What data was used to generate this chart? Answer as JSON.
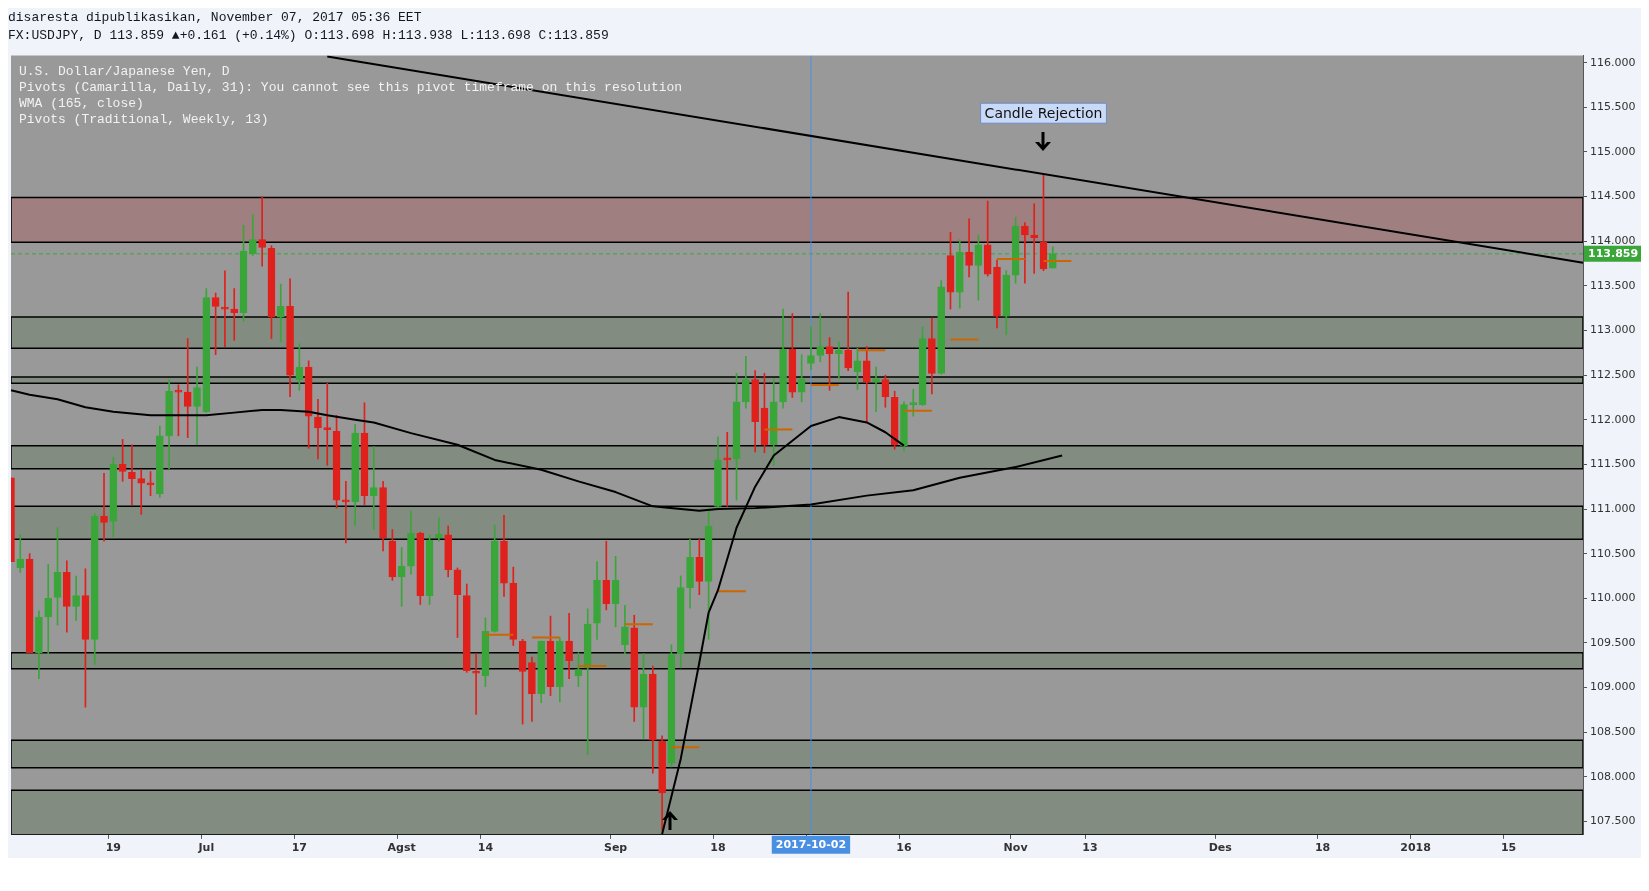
{
  "chart_data": {
    "type": "candlestick",
    "subtitle": "disaresta dipublikasikan, November 07, 2017 05:36 EET",
    "title": "FX:USDJPY, D 113.859 ▲+0.161 (+0.14%) O:113.698 H:113.938 L:113.698 C:113.859",
    "annotations": [
      "U.S. Dollar/Japanese Yen, D",
      "Pivots (Camarilla, Daily, 31): You cannot see this pivot timeframe on this resolution",
      "WMA (165, close)",
      "Pivots (Traditional, Weekly, 13)",
      "Candle Rejection"
    ],
    "categories": [
      null,
      null,
      null,
      null,
      null,
      null,
      null,
      null,
      null,
      null,
      null,
      "19",
      null,
      null,
      null,
      null,
      null,
      null,
      null,
      null,
      null,
      "Jul",
      null,
      null,
      null,
      null,
      null,
      null,
      null,
      null,
      null,
      "17",
      null,
      null,
      null,
      null,
      null,
      null,
      null,
      null,
      null,
      null,
      "Agst",
      null,
      null,
      null,
      null,
      null,
      null,
      null,
      null,
      "14",
      null,
      null,
      null,
      null,
      null,
      null,
      null,
      null,
      null,
      null,
      null,
      null,
      null,
      "Sep",
      null,
      null,
      null,
      null,
      null,
      null,
      null,
      null,
      null,
      null,
      "18",
      null,
      null,
      null,
      null,
      null,
      null,
      null,
      null,
      null,
      "2017-10-02",
      null,
      null,
      null,
      null,
      null,
      null,
      null,
      null,
      null,
      "16",
      null,
      null,
      null,
      null,
      null,
      null,
      null,
      null,
      null,
      null,
      null,
      "Nov",
      null,
      null,
      null,
      null,
      null,
      null,
      null,
      "13",
      null,
      null,
      null,
      null,
      null,
      null,
      null,
      null,
      null,
      null,
      null,
      null,
      null,
      "Des",
      null,
      null,
      null,
      null,
      null,
      null,
      null,
      null,
      null,
      null,
      "18",
      null,
      null,
      null,
      null,
      null,
      null,
      null,
      null,
      null,
      "2018",
      null,
      null,
      null,
      null,
      null,
      null,
      null,
      null,
      null,
      "15",
      null,
      null,
      null,
      null,
      null,
      null,
      null,
      null
    ],
    "ohlc": [
      [
        111.35,
        111.35,
        110.41,
        110.41
      ],
      [
        110.34,
        110.71,
        110.29,
        110.44
      ],
      [
        110.44,
        110.5,
        109.39,
        109.39
      ],
      [
        109.39,
        109.86,
        109.1,
        109.79
      ],
      [
        109.79,
        110.38,
        109.38,
        110.0
      ],
      [
        110.01,
        110.79,
        109.7,
        110.29
      ],
      [
        110.29,
        110.42,
        109.62,
        109.91
      ],
      [
        109.91,
        110.25,
        109.75,
        110.03
      ],
      [
        110.03,
        110.33,
        108.78,
        109.54
      ],
      [
        109.54,
        110.95,
        109.26,
        110.92
      ],
      [
        110.92,
        111.4,
        110.64,
        110.85
      ],
      [
        110.86,
        111.58,
        110.69,
        111.5
      ],
      [
        111.5,
        111.78,
        111.31,
        111.42
      ],
      [
        111.41,
        111.72,
        111.05,
        111.34
      ],
      [
        111.34,
        111.44,
        110.94,
        111.29
      ],
      [
        111.29,
        111.42,
        111.15,
        111.27
      ],
      [
        111.17,
        111.93,
        111.13,
        111.82
      ],
      [
        111.82,
        112.45,
        111.45,
        112.32
      ],
      [
        112.32,
        112.39,
        111.82,
        112.31
      ],
      [
        112.31,
        112.91,
        111.8,
        112.15
      ],
      [
        112.15,
        112.59,
        111.72,
        112.36
      ],
      [
        112.09,
        113.47,
        112.08,
        113.37
      ],
      [
        113.37,
        113.42,
        112.73,
        113.27
      ],
      [
        113.25,
        113.67,
        112.82,
        113.24
      ],
      [
        113.24,
        113.47,
        112.89,
        113.2
      ],
      [
        113.2,
        114.18,
        113.1,
        113.89
      ],
      [
        113.86,
        114.3,
        113.84,
        114.02
      ],
      [
        114.02,
        114.5,
        113.72,
        113.93
      ],
      [
        113.92,
        113.95,
        112.91,
        113.15
      ],
      [
        113.15,
        113.52,
        112.87,
        113.27
      ],
      [
        113.27,
        113.58,
        112.26,
        112.5
      ],
      [
        112.45,
        112.85,
        112.33,
        112.59
      ],
      [
        112.59,
        112.66,
        111.68,
        112.04
      ],
      [
        112.03,
        112.23,
        111.56,
        111.91
      ],
      [
        111.91,
        112.41,
        111.49,
        111.89
      ],
      [
        111.87,
        112.05,
        111.01,
        111.1
      ],
      [
        111.09,
        111.31,
        110.62,
        111.08
      ],
      [
        111.08,
        111.95,
        110.82,
        111.85
      ],
      [
        111.85,
        112.19,
        111.05,
        111.15
      ],
      [
        111.15,
        111.7,
        110.77,
        111.24
      ],
      [
        111.24,
        111.31,
        110.53,
        110.68
      ],
      [
        110.64,
        110.77,
        110.2,
        110.24
      ],
      [
        110.24,
        110.57,
        109.91,
        110.36
      ],
      [
        110.36,
        110.98,
        110.27,
        110.73
      ],
      [
        110.73,
        110.74,
        109.93,
        110.03
      ],
      [
        110.03,
        110.71,
        109.93,
        110.65
      ],
      [
        110.68,
        110.9,
        110.64,
        110.72
      ],
      [
        110.71,
        110.81,
        110.24,
        110.32
      ],
      [
        110.32,
        110.34,
        109.56,
        110.04
      ],
      [
        110.03,
        110.16,
        109.17,
        109.19
      ],
      [
        109.18,
        109.38,
        108.7,
        109.16
      ],
      [
        109.13,
        109.78,
        109.01,
        109.63
      ],
      [
        109.63,
        110.82,
        109.62,
        110.64
      ],
      [
        110.64,
        110.93,
        110.02,
        110.17
      ],
      [
        110.17,
        110.35,
        109.47,
        109.54
      ],
      [
        109.52,
        109.54,
        108.59,
        109.18
      ],
      [
        109.28,
        109.34,
        108.62,
        108.93
      ],
      [
        108.93,
        109.52,
        108.83,
        109.52
      ],
      [
        109.52,
        109.8,
        108.91,
        109.01
      ],
      [
        109.01,
        109.56,
        108.84,
        109.52
      ],
      [
        109.52,
        109.83,
        109.1,
        109.3
      ],
      [
        109.13,
        109.39,
        109.01,
        109.2
      ],
      [
        109.22,
        109.88,
        108.25,
        109.71
      ],
      [
        109.72,
        110.41,
        109.54,
        110.2
      ],
      [
        110.2,
        110.64,
        109.87,
        109.94
      ],
      [
        109.94,
        110.47,
        109.68,
        110.2
      ],
      [
        109.48,
        109.92,
        109.38,
        109.68
      ],
      [
        109.67,
        109.81,
        108.62,
        108.78
      ],
      [
        108.78,
        109.38,
        108.43,
        109.15
      ],
      [
        109.15,
        109.24,
        108.04,
        108.41
      ],
      [
        108.4,
        108.46,
        107.4,
        107.82
      ],
      [
        108.15,
        109.48,
        108.11,
        109.37
      ],
      [
        109.38,
        110.25,
        109.22,
        110.12
      ],
      [
        110.12,
        110.66,
        109.89,
        110.46
      ],
      [
        110.46,
        110.66,
        110.04,
        110.19
      ],
      [
        110.19,
        111.01,
        109.54,
        110.81
      ],
      [
        111.03,
        111.81,
        110.99,
        111.55
      ],
      [
        111.56,
        111.86,
        111.03,
        111.55
      ],
      [
        111.56,
        112.52,
        111.1,
        112.2
      ],
      [
        112.2,
        112.71,
        112.13,
        112.45
      ],
      [
        112.45,
        112.55,
        111.64,
        111.98
      ],
      [
        112.13,
        112.52,
        111.63,
        111.72
      ],
      [
        111.72,
        112.46,
        111.49,
        112.2
      ],
      [
        112.2,
        113.24,
        112.13,
        112.79
      ],
      [
        112.79,
        113.19,
        112.25,
        112.31
      ],
      [
        112.31,
        112.73,
        112.2,
        112.46
      ],
      [
        112.63,
        113.04,
        112.56,
        112.72
      ],
      [
        112.72,
        113.19,
        112.65,
        112.82
      ],
      [
        112.82,
        112.92,
        112.33,
        112.74
      ],
      [
        112.74,
        112.87,
        112.46,
        112.78
      ],
      [
        112.78,
        113.43,
        112.55,
        112.58
      ],
      [
        112.54,
        112.8,
        112.34,
        112.66
      ],
      [
        112.66,
        112.82,
        111.97,
        112.42
      ],
      [
        112.42,
        112.59,
        112.09,
        112.46
      ],
      [
        112.45,
        112.5,
        112.14,
        112.26
      ],
      [
        112.25,
        112.32,
        111.67,
        111.72
      ],
      [
        111.71,
        112.2,
        111.65,
        112.17
      ],
      [
        112.17,
        112.34,
        112.04,
        112.18
      ],
      [
        112.17,
        113.04,
        112.16,
        112.91
      ],
      [
        112.91,
        113.14,
        112.29,
        112.52
      ],
      [
        112.52,
        113.56,
        112.51,
        113.49
      ],
      [
        113.84,
        114.1,
        113.24,
        113.43
      ],
      [
        113.43,
        114.02,
        113.25,
        113.88
      ],
      [
        113.88,
        114.25,
        113.6,
        113.73
      ],
      [
        113.73,
        114.07,
        113.34,
        113.96
      ],
      [
        113.96,
        114.45,
        113.61,
        113.63
      ],
      [
        113.71,
        113.79,
        113.03,
        113.16
      ],
      [
        113.16,
        113.67,
        112.95,
        113.62
      ],
      [
        113.62,
        114.27,
        113.53,
        114.17
      ],
      [
        114.17,
        114.21,
        113.53,
        114.07
      ],
      [
        114.07,
        114.42,
        113.64,
        114.04
      ],
      [
        113.99,
        114.74,
        113.67,
        113.69
      ],
      [
        113.698,
        113.938,
        113.698,
        113.859
      ],
      null,
      null,
      null,
      null,
      null,
      null,
      null,
      null,
      null,
      null,
      null,
      null,
      null,
      null,
      null,
      null,
      null,
      null,
      null,
      null,
      null,
      null,
      null,
      null,
      null,
      null,
      null,
      null,
      null,
      null,
      null,
      null,
      null,
      null,
      null,
      null,
      null,
      null,
      null,
      null,
      null,
      null,
      null,
      null,
      null,
      null,
      null,
      null,
      null,
      null,
      null,
      null,
      null,
      null,
      null,
      null,
      null
    ],
    "colors": [
      "#e0201b",
      "#3aa63a",
      "#e0201b",
      "#3aa63a",
      "#3aa63a",
      "#3aa63a",
      "#e0201b",
      "#3aa63a",
      "#e0201b",
      "#3aa63a",
      "#e0201b",
      "#3aa63a",
      "#e0201b",
      "#e0201b",
      "#e0201b",
      "#e0201b",
      "#3aa63a",
      "#3aa63a",
      "#e0201b",
      "#e0201b",
      "#3aa63a",
      "#3aa63a",
      "#e0201b",
      "#e0201b",
      "#e0201b",
      "#3aa63a",
      "#3aa63a",
      "#e0201b",
      "#e0201b",
      "#3aa63a",
      "#e0201b",
      "#3aa63a",
      "#e0201b",
      "#e0201b",
      "#e0201b",
      "#e0201b",
      "#e0201b",
      "#3aa63a",
      "#e0201b",
      "#3aa63a",
      "#e0201b",
      "#e0201b",
      "#3aa63a",
      "#3aa63a",
      "#e0201b",
      "#3aa63a",
      "#3aa63a",
      "#e0201b",
      "#e0201b",
      "#e0201b",
      "#e0201b",
      "#3aa63a",
      "#3aa63a",
      "#e0201b",
      "#e0201b",
      "#e0201b",
      "#e0201b",
      "#3aa63a",
      "#e0201b",
      "#3aa63a",
      "#e0201b",
      "#3aa63a",
      "#3aa63a",
      "#3aa63a",
      "#e0201b",
      "#3aa63a",
      "#3aa63a",
      "#e0201b",
      "#3aa63a",
      "#e0201b",
      "#e0201b",
      "#3aa63a",
      "#3aa63a",
      "#3aa63a",
      "#e0201b",
      "#3aa63a",
      "#3aa63a",
      "#e0201b",
      "#3aa63a",
      "#3aa63a",
      "#e0201b",
      "#e0201b",
      "#3aa63a",
      "#3aa63a",
      "#e0201b",
      "#3aa63a",
      "#3aa63a",
      "#3aa63a",
      "#e0201b",
      "#3aa63a",
      "#e0201b",
      "#3aa63a",
      "#e0201b",
      "#3aa63a",
      "#e0201b",
      "#e0201b",
      "#3aa63a",
      "#3aa63a",
      "#3aa63a",
      "#e0201b",
      "#3aa63a",
      "#e0201b",
      "#3aa63a",
      "#e0201b",
      "#3aa63a",
      "#e0201b",
      "#e0201b",
      "#3aa63a",
      "#3aa63a",
      "#e0201b",
      "#e0201b",
      "#e0201b",
      "#3aa63a",
      null,
      null,
      null,
      null,
      null,
      null,
      null,
      null,
      null,
      null,
      null,
      null,
      null,
      null,
      null,
      null,
      null,
      null,
      null,
      null,
      null,
      null,
      null,
      null,
      null,
      null,
      null,
      null,
      null,
      null,
      null,
      null,
      null,
      null,
      null,
      null,
      null,
      null,
      null,
      null,
      null,
      null,
      null,
      null,
      null,
      null,
      null,
      null,
      null,
      null,
      null,
      null,
      null,
      null,
      null,
      null,
      null
    ],
    "series": [
      {
        "type": "line",
        "color": "#000000",
        "values": [
          112.33,
          null,
          112.28,
          null,
          null,
          112.23,
          null,
          null,
          112.14,
          null,
          null,
          112.09,
          null,
          null,
          null,
          112.05,
          null,
          null,
          null,
          112.05,
          null,
          112.05,
          null,
          null,
          112.08,
          null,
          null,
          112.11,
          null,
          112.11,
          null,
          null,
          112.09,
          null,
          112.05,
          null,
          null,
          112.0,
          null,
          111.97,
          null,
          null,
          null,
          111.85,
          null,
          null,
          null,
          null,
          111.72,
          null,
          null,
          null,
          111.55,
          null,
          null,
          null,
          null,
          111.44,
          null,
          null,
          null,
          111.31,
          null,
          null,
          null,
          111.19,
          null,
          null,
          null,
          111.03,
          null,
          null,
          null,
          null,
          110.98,
          null,
          111.0,
          null,
          null,
          null,
          111.01,
          null,
          null,
          null,
          null,
          null,
          111.05,
          null,
          null,
          null,
          null,
          null,
          111.15,
          null,
          null,
          null,
          null,
          111.21,
          null,
          null,
          null,
          null,
          111.35,
          null,
          null,
          null,
          null,
          null,
          111.47,
          null,
          null,
          null,
          null,
          111.6,
          null,
          null,
          null,
          null,
          null,
          null,
          null,
          null,
          null,
          null,
          null,
          null,
          null,
          null,
          null,
          null,
          null,
          null,
          null,
          null,
          null,
          null,
          null,
          null,
          null,
          null,
          null,
          null,
          null,
          null,
          null,
          null,
          null,
          null,
          null,
          null,
          null,
          null,
          null,
          null,
          null,
          null,
          null,
          null,
          null,
          null,
          null,
          null,
          null,
          null,
          null,
          null,
          null,
          null,
          null,
          null
        ]
      },
      {
        "type": "line",
        "color": "#000000",
        "values": [
          null,
          null,
          null,
          null,
          null,
          null,
          null,
          null,
          null,
          null,
          null,
          null,
          null,
          null,
          null,
          null,
          null,
          null,
          null,
          null,
          null,
          null,
          null,
          null,
          null,
          null,
          null,
          null,
          null,
          null,
          null,
          null,
          null,
          null,
          116.07,
          null,
          null,
          null,
          null,
          null,
          null,
          null,
          null,
          null,
          null,
          null,
          null,
          null,
          null,
          null,
          null,
          null,
          null,
          null,
          null,
          null,
          null,
          null,
          null,
          null,
          null,
          null,
          null,
          null,
          null,
          null,
          null,
          null,
          null,
          null,
          null,
          null,
          null,
          null,
          null,
          null,
          null,
          null,
          null,
          null,
          null,
          null,
          null,
          null,
          null,
          null,
          null,
          null,
          null,
          null,
          null,
          null,
          null,
          null,
          null,
          null,
          null,
          null,
          null,
          null,
          null,
          null,
          null,
          null,
          null,
          null,
          null,
          null,
          null,
          null,
          null,
          null,
          null,
          null,
          null,
          null,
          null,
          null,
          null,
          null,
          null,
          null,
          null,
          null,
          null,
          null,
          null,
          null,
          null,
          null,
          null,
          null,
          null,
          null,
          null,
          null,
          null,
          null,
          null,
          null,
          null,
          null,
          null,
          null,
          null,
          null,
          null,
          null,
          null,
          null,
          null,
          null,
          null,
          null,
          null,
          null,
          null,
          null,
          null,
          null,
          null,
          null,
          null,
          null,
          null,
          null,
          null,
          null,
          null,
          113.76
        ]
      },
      {
        "type": "line",
        "color": "#000000",
        "values": [
          null,
          null,
          null,
          null,
          null,
          null,
          null,
          null,
          null,
          null,
          null,
          null,
          null,
          null,
          null,
          null,
          null,
          null,
          null,
          null,
          null,
          null,
          null,
          null,
          null,
          null,
          null,
          null,
          null,
          null,
          null,
          null,
          null,
          null,
          null,
          null,
          null,
          null,
          null,
          null,
          null,
          null,
          null,
          null,
          null,
          null,
          null,
          null,
          null,
          null,
          null,
          null,
          null,
          null,
          null,
          null,
          null,
          null,
          null,
          null,
          null,
          null,
          null,
          null,
          null,
          null,
          null,
          null,
          null,
          null,
          107.36,
          null,
          108.2,
          null,
          109.28,
          109.84,
          110.09,
          null,
          110.79,
          null,
          111.25,
          null,
          111.6,
          null,
          null,
          null,
          111.93,
          null,
          null,
          112.03,
          null,
          null,
          111.97,
          null,
          111.86,
          null,
          111.71,
          null,
          null,
          null,
          null,
          null,
          null,
          null,
          null,
          null,
          null,
          null,
          null,
          null,
          null,
          null,
          null,
          null,
          null,
          null,
          null,
          null,
          null,
          null,
          null,
          null,
          null,
          null,
          null,
          null,
          null,
          null,
          null,
          null,
          null,
          null,
          null,
          null,
          null,
          null,
          null,
          null,
          null,
          null,
          null,
          null,
          null,
          null,
          null,
          null,
          null,
          null,
          null,
          null,
          null,
          null,
          null,
          null,
          null,
          null,
          null,
          null,
          null,
          null,
          null,
          null,
          null,
          null,
          null,
          null,
          null,
          null,
          null,
          null
        ]
      },
      {
        "type": "line",
        "color": "#cc6600",
        "values": [
          null,
          null,
          null,
          null,
          null,
          null,
          null,
          null,
          null,
          null,
          null,
          null,
          null,
          null,
          null,
          null,
          null,
          null,
          null,
          null,
          null,
          null,
          null,
          null,
          null,
          null,
          null,
          null,
          null,
          null,
          null,
          null,
          null,
          null,
          null,
          null,
          null,
          null,
          null,
          null,
          null,
          null,
          null,
          null,
          null,
          null,
          null,
          null,
          null,
          null,
          null,
          109.59,
          109.59,
          109.59,
          109.59,
          null,
          109.56,
          109.56,
          109.56,
          109.56,
          null,
          109.24,
          109.24,
          109.24,
          109.24,
          null,
          109.71,
          109.71,
          109.71,
          109.71,
          null,
          108.33,
          108.33,
          108.33,
          108.33,
          null,
          110.08,
          110.08,
          110.08,
          110.08,
          null,
          111.89,
          111.89,
          111.89,
          111.89,
          null,
          112.39,
          112.39,
          112.39,
          112.39,
          null,
          112.78,
          112.78,
          112.78,
          112.78,
          null,
          112.1,
          112.1,
          112.1,
          112.1,
          null,
          112.9,
          112.9,
          112.9,
          112.9,
          null,
          113.8,
          113.8,
          113.8,
          113.8,
          null,
          113.78,
          113.78,
          113.78,
          113.78,
          null,
          null,
          null,
          null,
          null,
          null,
          null,
          null,
          null,
          null,
          null,
          null,
          null,
          null,
          null,
          null,
          null,
          null,
          null,
          null,
          null,
          null,
          null,
          null,
          null,
          null,
          null,
          null,
          null,
          null,
          null,
          null,
          null,
          null,
          null,
          null,
          null,
          null,
          null,
          null,
          null,
          null,
          null,
          null,
          null,
          null,
          null,
          null,
          null,
          null,
          null,
          null,
          null,
          null,
          null
        ]
      }
    ],
    "bands": [
      {
        "axis": "y",
        "from": 113.99,
        "to": 114.49,
        "color": "#a07a7a"
      },
      {
        "axis": "y",
        "from": 112.8,
        "to": 113.15,
        "color": "#7f8a7c"
      },
      {
        "axis": "y",
        "from": 112.41,
        "to": 112.48,
        "color": "#7f8a7c"
      },
      {
        "axis": "y",
        "from": 111.45,
        "to": 111.71,
        "color": "#7f8a7c"
      },
      {
        "axis": "y",
        "from": 110.66,
        "to": 111.03,
        "color": "#7f8a7c"
      },
      {
        "axis": "y",
        "from": 109.21,
        "to": 109.39,
        "color": "#7f8a7c"
      },
      {
        "axis": "y",
        "from": 108.1,
        "to": 108.41,
        "color": "#7f8a7c"
      },
      {
        "axis": "y",
        "from": 107.35,
        "to": 107.85,
        "color": "#7f8a7c"
      }
    ],
    "ref_lines": [
      {
        "axis": "y",
        "value": 113.859,
        "label": "113.859",
        "color": "#3aa63a",
        "line_style": "dashed"
      },
      {
        "axis": "x",
        "value": "2017-10-02",
        "color": "#4a90e2",
        "line_style": "solid"
      }
    ],
    "ylim": [
      107.35,
      116.08
    ],
    "yticks": [
      {
        "value": 107.5,
        "label": "107.500"
      },
      {
        "value": 108,
        "label": "108.000"
      },
      {
        "value": 108.5,
        "label": "108.500"
      },
      {
        "value": 109,
        "label": "109.000"
      },
      {
        "value": 109.5,
        "label": "109.500"
      },
      {
        "value": 110,
        "label": "110.000"
      },
      {
        "value": 110.5,
        "label": "110.500"
      },
      {
        "value": 111,
        "label": "111.000"
      },
      {
        "value": 111.5,
        "label": "111.500"
      },
      {
        "value": 112,
        "label": "112.000"
      },
      {
        "value": 112.5,
        "label": "112.500"
      },
      {
        "value": 113,
        "label": "113.000"
      },
      {
        "value": 113.5,
        "label": "113.500"
      },
      {
        "value": 114,
        "label": "114.000"
      },
      {
        "value": 114.5,
        "label": "114.500"
      },
      {
        "value": 115,
        "label": "115.000"
      },
      {
        "value": 115.5,
        "label": "115.500"
      },
      {
        "value": 116,
        "label": "116.000"
      }
    ],
    "marker": "none",
    "line_style": "solid"
  }
}
